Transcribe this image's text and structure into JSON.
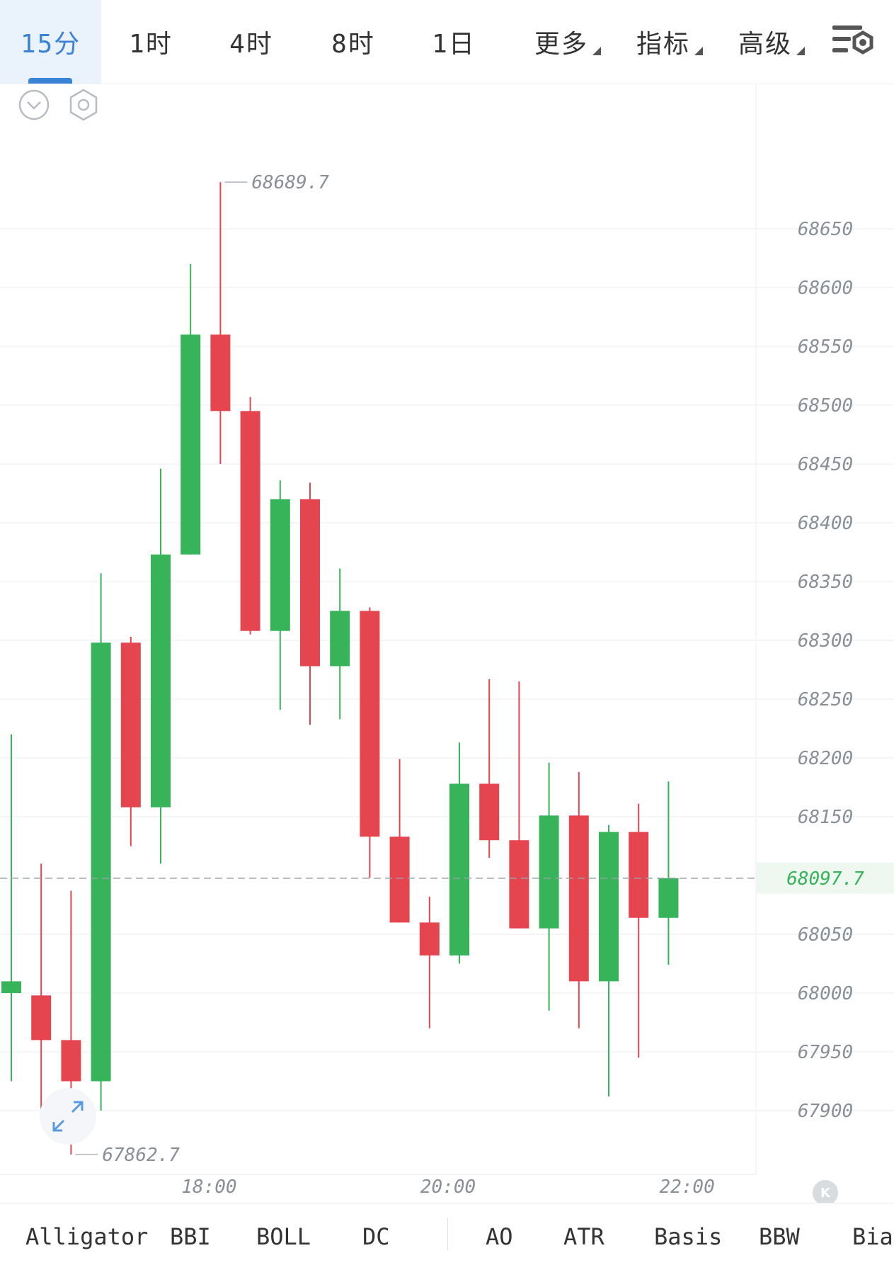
{
  "timeframes": [
    {
      "label": "15分",
      "active": true
    },
    {
      "label": "1时",
      "active": false
    },
    {
      "label": "4时",
      "active": false
    },
    {
      "label": "8时",
      "active": false
    },
    {
      "label": "1日",
      "active": false
    }
  ],
  "menus": [
    {
      "label": "更多"
    },
    {
      "label": "指标"
    },
    {
      "label": "高级"
    }
  ],
  "icons": {
    "settings": "chart-settings-icon",
    "collapse": "chevron-down-circle-icon",
    "gear": "hexagon-gear-icon",
    "expand": "expand-arrows-icon",
    "scroll_latest": "scroll-to-latest-icon"
  },
  "colors": {
    "up": "#37b35a",
    "down": "#e5454f",
    "current_price": "#37b35a",
    "accent": "#3a82d6"
  },
  "chart_data": {
    "type": "candlestick",
    "ylim": [
      67850,
      68700
    ],
    "yticks": [
      "68650",
      "68600",
      "68550",
      "68500",
      "68450",
      "68400",
      "68350",
      "68300",
      "68250",
      "68200",
      "68150",
      "68100",
      "68050",
      "68000",
      "67950",
      "67900"
    ],
    "ytick_values": [
      68650,
      68600,
      68550,
      68500,
      68450,
      68400,
      68350,
      68300,
      68250,
      68200,
      68150,
      68050,
      68000,
      67950,
      67900
    ],
    "ytick_labels": [
      "68650",
      "68600",
      "68550",
      "68500",
      "68450",
      "68400",
      "68350",
      "68300",
      "68250",
      "68200",
      "68150",
      "68050",
      "68000",
      "67950",
      "67900"
    ],
    "xticks": [
      {
        "label": "18:00",
        "index": 7
      },
      {
        "label": "20:00",
        "index": 15
      },
      {
        "label": "22:00",
        "index": 23
      }
    ],
    "candles": [
      {
        "o": 68000,
        "h": 68220,
        "l": 67925,
        "c": 68010
      },
      {
        "o": 67998,
        "h": 68110,
        "l": 67890,
        "c": 67960
      },
      {
        "o": 67960,
        "h": 68087,
        "l": 67862.7,
        "c": 67925
      },
      {
        "o": 67925,
        "h": 68357,
        "l": 67900,
        "c": 68298
      },
      {
        "o": 68298,
        "h": 68303,
        "l": 68125,
        "c": 68158
      },
      {
        "o": 68158,
        "h": 68446,
        "l": 68110,
        "c": 68373
      },
      {
        "o": 68373,
        "h": 68620,
        "l": 68373,
        "c": 68560
      },
      {
        "o": 68560,
        "h": 68689.7,
        "l": 68450,
        "c": 68495
      },
      {
        "o": 68495,
        "h": 68507,
        "l": 68305,
        "c": 68308
      },
      {
        "o": 68308,
        "h": 68436,
        "l": 68241,
        "c": 68420
      },
      {
        "o": 68420,
        "h": 68434,
        "l": 68228,
        "c": 68278
      },
      {
        "o": 68278,
        "h": 68361,
        "l": 68233,
        "c": 68325
      },
      {
        "o": 68325,
        "h": 68328,
        "l": 68098,
        "c": 68133
      },
      {
        "o": 68133,
        "h": 68199,
        "l": 68060,
        "c": 68060
      },
      {
        "o": 68060,
        "h": 68082,
        "l": 67970,
        "c": 68032
      },
      {
        "o": 68032,
        "h": 68213,
        "l": 68025,
        "c": 68178
      },
      {
        "o": 68178,
        "h": 68267,
        "l": 68115,
        "c": 68130
      },
      {
        "o": 68130,
        "h": 68265,
        "l": 68055,
        "c": 68055
      },
      {
        "o": 68055,
        "h": 68196,
        "l": 67985,
        "c": 68151
      },
      {
        "o": 68151,
        "h": 68188,
        "l": 67970,
        "c": 68010
      },
      {
        "o": 68010,
        "h": 68143,
        "l": 67912,
        "c": 68137
      },
      {
        "o": 68137,
        "h": 68161,
        "l": 67945,
        "c": 68064
      },
      {
        "o": 68064,
        "h": 68180,
        "l": 68024,
        "c": 68097.7
      }
    ],
    "high_label": "68689.7",
    "low_label": "67862.7",
    "current_price": 68097.7,
    "current_price_label": "68097.7"
  },
  "indicators": [
    "Alligator",
    "BBI",
    "BOLL",
    "DC",
    "AO",
    "ATR",
    "Basis",
    "BBW",
    "Bias"
  ],
  "collapse_label": "K"
}
